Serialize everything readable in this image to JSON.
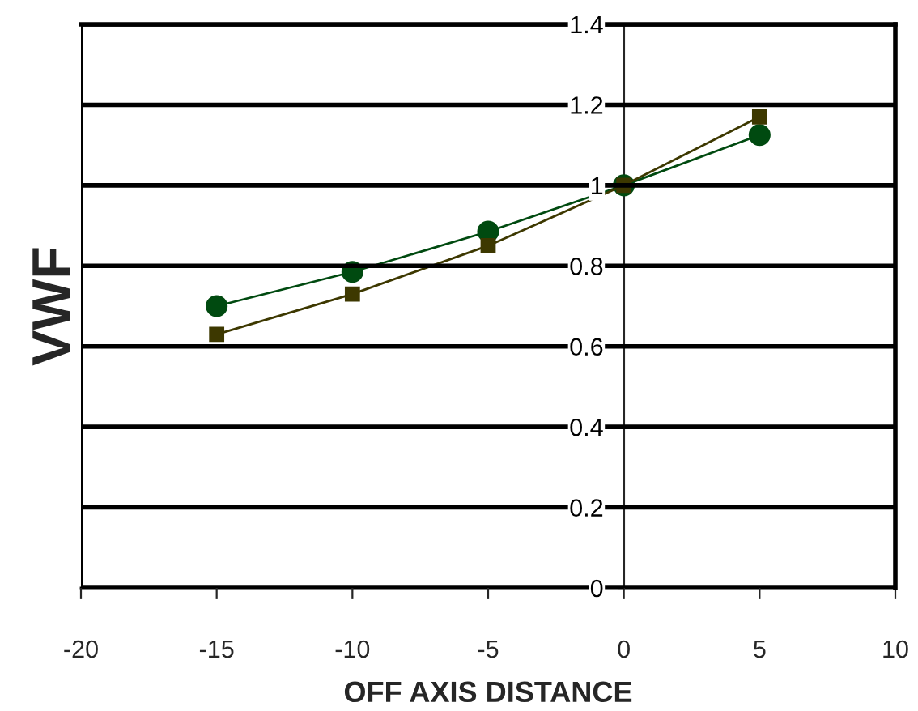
{
  "chart_data": {
    "type": "line",
    "xlabel": "OFF AXIS DISTANCE",
    "ylabel": "VWF",
    "x": [
      -15,
      -10,
      -5,
      0,
      5
    ],
    "series": [
      {
        "color": "#004a10",
        "values": [
          0.7,
          0.785,
          0.885,
          1.0,
          1.125
        ],
        "marker": "circle"
      },
      {
        "color": "#3d3800",
        "values": [
          0.63,
          0.73,
          0.85,
          1.0,
          1.17
        ],
        "marker": "square"
      }
    ],
    "xlim": [
      -20,
      10
    ],
    "xticks": [
      -20,
      -15,
      -10,
      -5,
      0,
      5,
      10
    ],
    "ylim": [
      0,
      1.4
    ],
    "yticks": [
      0,
      0.2,
      0.4,
      0.6,
      0.8,
      1,
      1.2,
      1.4
    ],
    "grid": "y",
    "line_style": "solid"
  }
}
